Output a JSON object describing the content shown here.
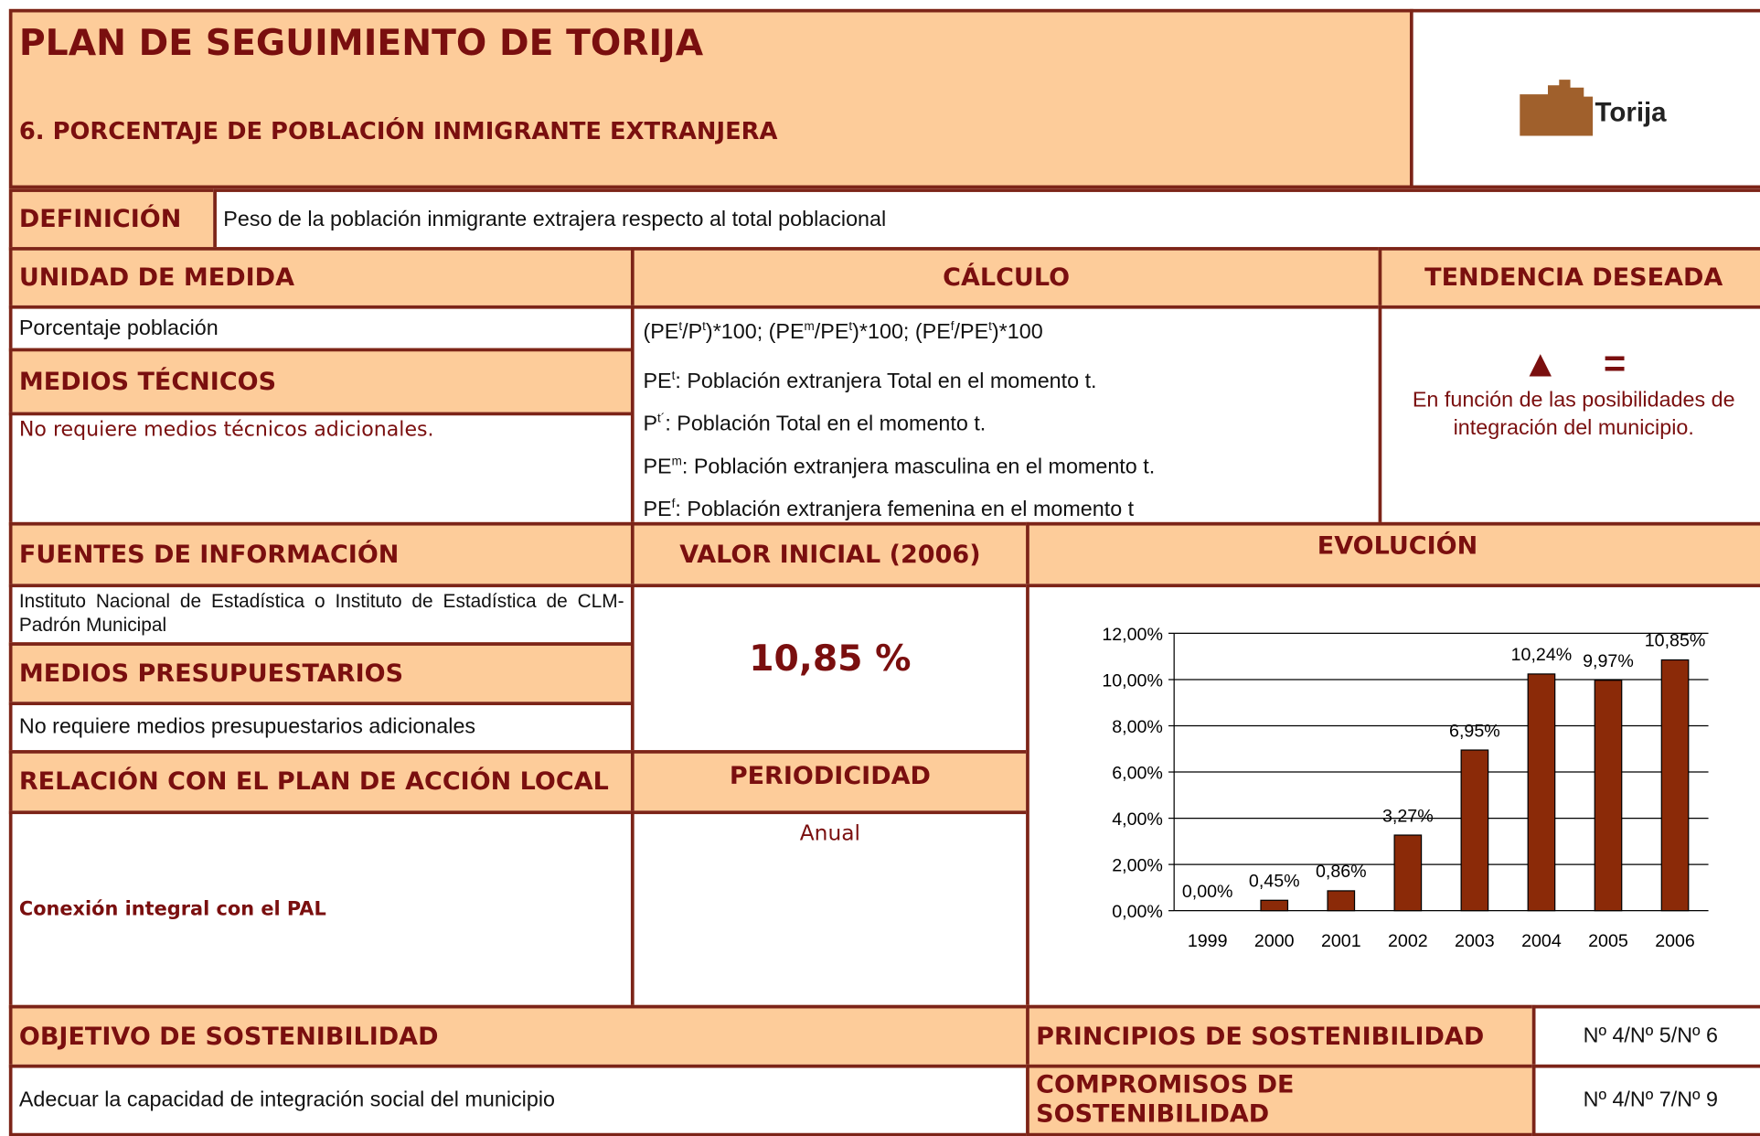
{
  "header": {
    "title": "PLAN DE SEGUIMIENTO DE  TORIJA",
    "subtitle": "6. PORCENTAJE DE POBLACIÓN INMIGRANTE EXTRANJERA",
    "logo_text": "Torija"
  },
  "definicion": {
    "label": "DEFINICIÓN",
    "text": "Peso de la población inmigrante extrajera respecto al total poblacional"
  },
  "unidad": {
    "label": "UNIDAD DE MEDIDA",
    "text": "Porcentaje población"
  },
  "calculo": {
    "label": "CÁLCULO",
    "lines": [
      [
        "(PE",
        "t",
        "/P",
        "t",
        ")*100; (PE",
        "m",
        "/PE",
        "t",
        ")*100;  (PE",
        "f",
        "/PE",
        "t",
        ")*100"
      ],
      [
        "PE",
        "t",
        ": Población extranjera Total en el momento t."
      ],
      [
        "P",
        "t´",
        ": Población Total en el momento t."
      ],
      [
        "PE",
        "m",
        ": Población extranjera masculina en el momento t."
      ],
      [
        "PE",
        "f",
        ": Población extranjera femenina en el momento t"
      ]
    ]
  },
  "tendencia": {
    "label": "TENDENCIA DESEADA",
    "symbols": [
      "▲",
      "="
    ],
    "text": "En función de las posibilidades de integración del municipio."
  },
  "medios_tecnicos": {
    "label": "MEDIOS TÉCNICOS",
    "text": "No requiere medios técnicos adicionales."
  },
  "fuentes": {
    "label": "FUENTES DE INFORMACIÓN",
    "text": "Instituto Nacional de Estadística o Instituto de Estadística de CLM- Padrón Municipal"
  },
  "valor_inicial": {
    "label": "VALOR INICIAL (2006)",
    "text": "10,85 %"
  },
  "evolucion": {
    "label": "EVOLUCIÓN"
  },
  "medios_presupuestarios": {
    "label": "MEDIOS PRESUPUESTARIOS",
    "text": "No requiere medios presupuestarios adicionales"
  },
  "relacion": {
    "label": "RELACIÓN CON EL PLAN DE ACCIÓN LOCAL",
    "text": "Conexión integral con el PAL"
  },
  "periodicidad": {
    "label": "PERIODICIDAD",
    "text": "Anual"
  },
  "objetivo": {
    "label": "OBJETIVO DE SOSTENIBILIDAD",
    "text": "Adecuar la capacidad de integración social del municipio"
  },
  "principios": {
    "label": "PRINCIPIOS DE SOSTENIBILIDAD",
    "text": "Nº 4/Nº 5/Nº 6"
  },
  "compromisos": {
    "label": "COMPROMISOS DE SOSTENIBILIDAD",
    "text": "Nº 4/Nº 7/Nº 9"
  },
  "chart": {
    "type": "bar",
    "color": "#8b2a08",
    "grid": true,
    "categories": [
      "1999",
      "2000",
      "2001",
      "2002",
      "2003",
      "2004",
      "2005",
      "2006"
    ],
    "values": [
      0,
      0.45,
      0.86,
      3.27,
      6.95,
      10.24,
      9.97,
      10.85
    ],
    "value_labels": [
      "0,00%",
      "0,45%",
      "0,86%",
      "3,27%",
      "6,95%",
      "10,24%",
      "9,97%",
      "10,85%"
    ],
    "ylim": [
      0,
      12
    ],
    "yticks": [
      {
        "value": 0,
        "label": "0,00%"
      },
      {
        "value": 2,
        "label": "2,00%"
      },
      {
        "value": 4,
        "label": "4,00%"
      },
      {
        "value": 6,
        "label": "6,00%"
      },
      {
        "value": 8,
        "label": "8,00%"
      },
      {
        "value": 10,
        "label": "10,00%"
      },
      {
        "value": 12,
        "label": "12,00%"
      }
    ]
  }
}
